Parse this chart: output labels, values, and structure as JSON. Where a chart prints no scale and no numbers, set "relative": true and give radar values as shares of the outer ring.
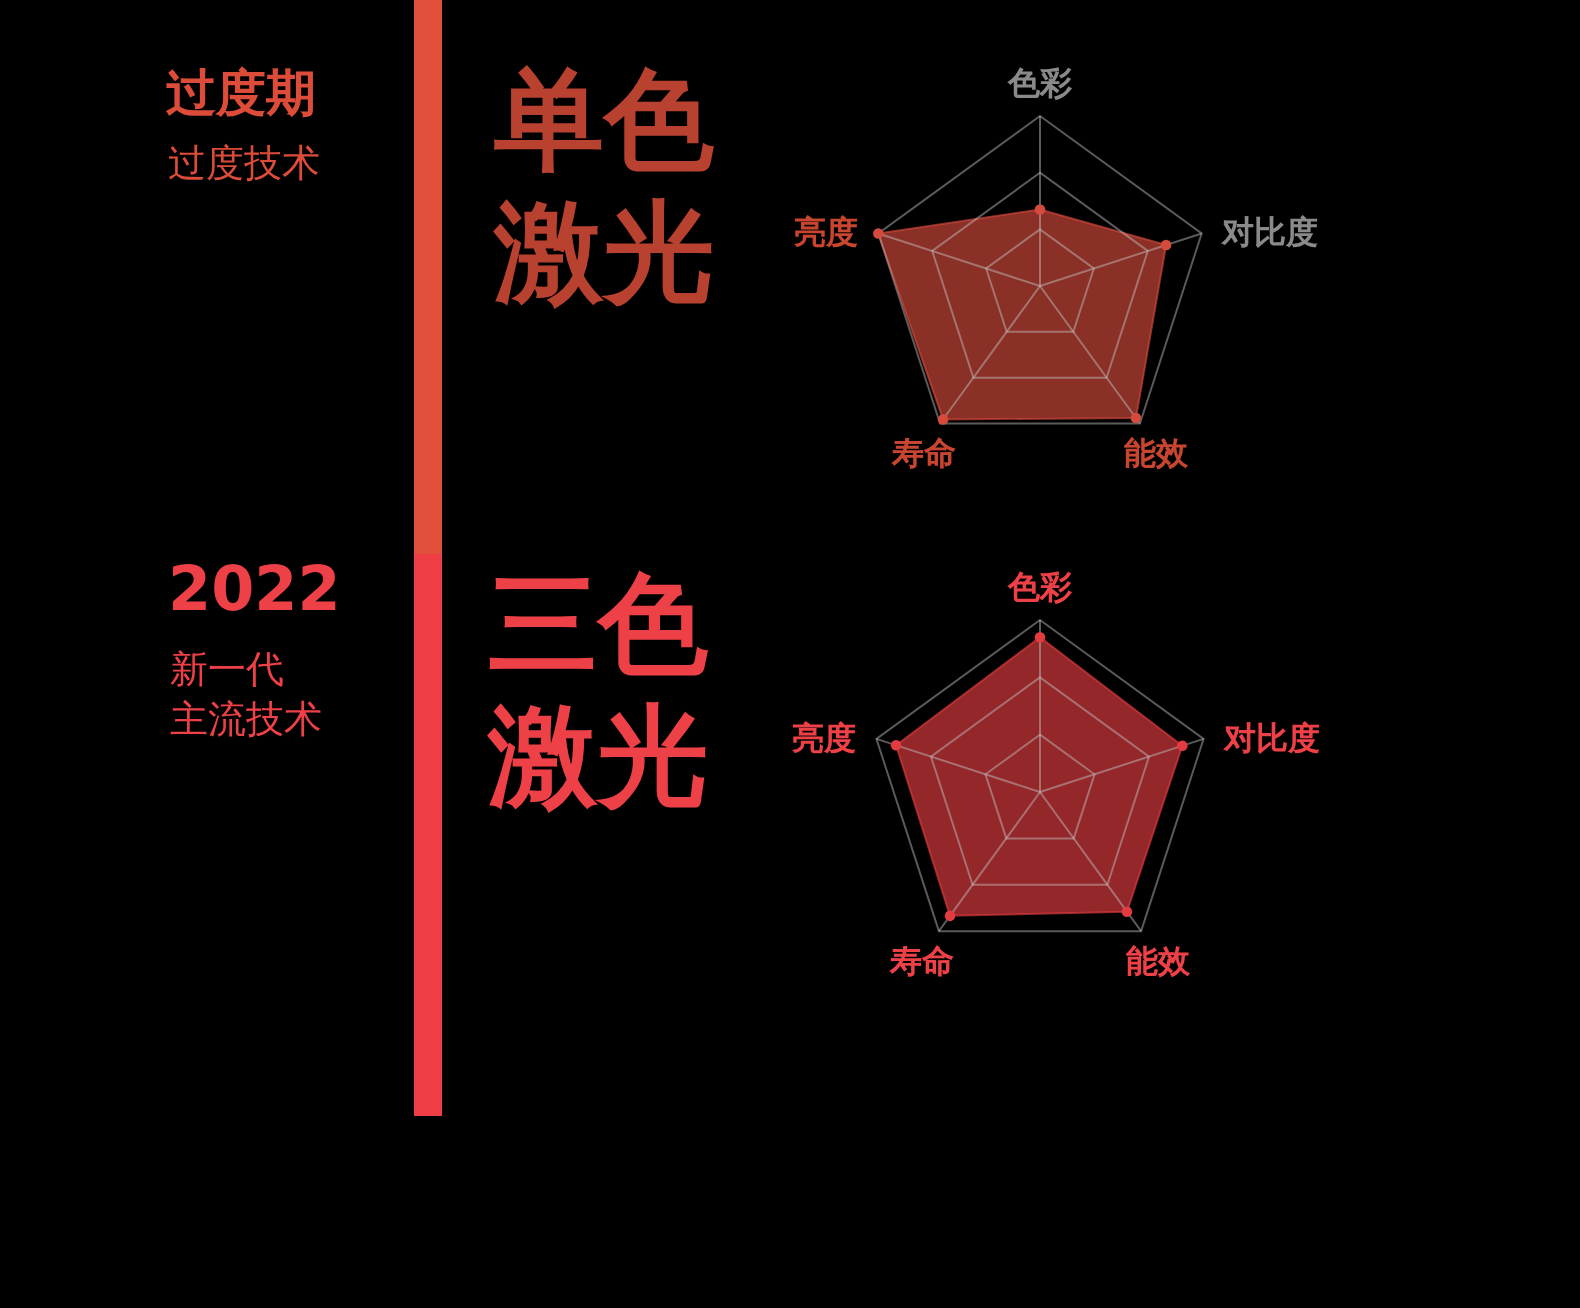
{
  "chart_data": [
    {
      "type": "radar",
      "relative": true,
      "title": "单色激光",
      "annotations": [
        "过度期",
        "过度技术"
      ],
      "categories": [
        "色彩",
        "对比度",
        "能效",
        "寿命",
        "亮度"
      ],
      "grid": true,
      "marker": "circle",
      "series": [
        {
          "color": "#d44a3c",
          "values": [
            0.45,
            0.78,
            0.96,
            0.97,
            1.0
          ]
        }
      ]
    },
    {
      "type": "radar",
      "relative": true,
      "title": "三色激光",
      "annotations": [
        "2022",
        "新一代",
        "主流技术"
      ],
      "categories": [
        "色彩",
        "对比度",
        "能效",
        "寿命",
        "亮度"
      ],
      "grid": true,
      "marker": "circle",
      "series": [
        {
          "color": "#e23c40",
          "values": [
            0.9,
            0.87,
            0.86,
            0.89,
            0.88
          ]
        }
      ]
    }
  ]
}
